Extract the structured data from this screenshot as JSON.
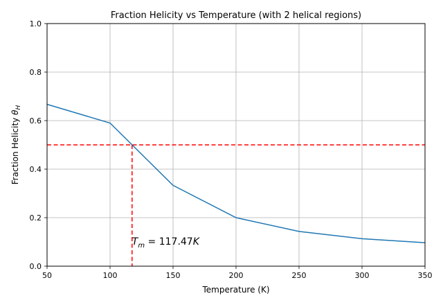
{
  "chart_data": {
    "type": "line",
    "title": "Fraction Helicity vs Temperature (with 2 helical regions)",
    "xlabel": "Temperature (K)",
    "ylabel_main": "Fraction Helicity ",
    "ylabel_symbol": "θ",
    "ylabel_sub": "H",
    "xlim": [
      50,
      350
    ],
    "ylim": [
      0.0,
      1.0
    ],
    "xticks": [
      50,
      100,
      150,
      200,
      250,
      300,
      350
    ],
    "yticks": [
      0.0,
      0.2,
      0.4,
      0.6,
      0.8,
      1.0
    ],
    "xtick_labels": [
      "50",
      "100",
      "150",
      "200",
      "250",
      "300",
      "350"
    ],
    "ytick_labels": [
      "0.0",
      "0.2",
      "0.4",
      "0.6",
      "0.8",
      "1.0"
    ],
    "grid": true,
    "series": [
      {
        "color": "#1f77b4",
        "x": [
          50,
          100,
          150,
          200,
          250,
          300,
          350
        ],
        "y": [
          0.667,
          0.59,
          0.333,
          0.2,
          0.143,
          0.113,
          0.097
        ]
      }
    ],
    "hline": {
      "y": 0.5,
      "color": "#ff0000",
      "style": "dashed"
    },
    "vline": {
      "x": 117.47,
      "color": "#ff0000",
      "style": "dashed"
    },
    "annotation": {
      "symbol": "T",
      "sub": "m",
      "text": " = 117.47",
      "unit": "K",
      "x": 117.47,
      "y": 0.1
    }
  }
}
